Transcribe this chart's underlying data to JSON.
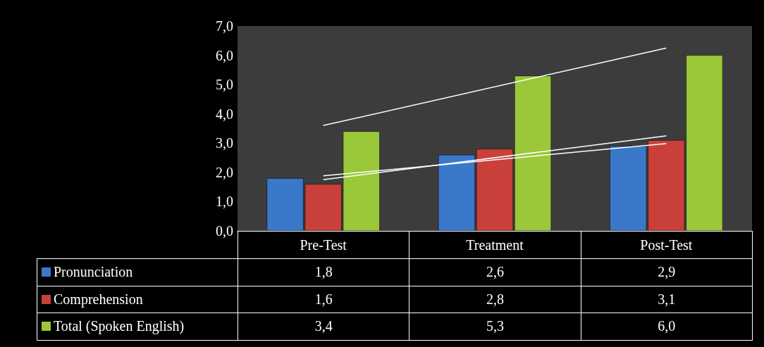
{
  "chart_data": {
    "type": "bar",
    "categories": [
      "Pre-Test",
      "Treatment",
      "Post-Test"
    ],
    "series": [
      {
        "name": "Pronunciation",
        "color": "#3a78c9",
        "values": [
          1.8,
          2.6,
          2.9
        ],
        "value_labels": [
          "1,8",
          "2,6",
          "2,9"
        ]
      },
      {
        "name": "Comprehension",
        "color": "#c9403b",
        "values": [
          1.6,
          2.8,
          3.1
        ],
        "value_labels": [
          "1,6",
          "2,8",
          "3,1"
        ]
      },
      {
        "name": "Total (Spoken English)",
        "color": "#9bc83a",
        "values": [
          3.4,
          5.3,
          6.0
        ],
        "value_labels": [
          "3,4",
          "5,3",
          "6,0"
        ]
      },
      {
        "type": "line",
        "color": "#ffffff",
        "x": [
          "Pre-Test",
          "Post-Test"
        ],
        "values": [
          1.88,
          2.98
        ]
      },
      {
        "type": "line",
        "color": "#ffffff",
        "x": [
          "Pre-Test",
          "Post-Test"
        ],
        "values": [
          1.75,
          3.25
        ]
      },
      {
        "type": "line",
        "color": "#ffffff",
        "x": [
          "Pre-Test",
          "Post-Test"
        ],
        "values": [
          3.6,
          6.25
        ]
      }
    ],
    "ylim": [
      0,
      7
    ],
    "yticks": [
      {
        "value": 0,
        "label": "0,0"
      },
      {
        "value": 1,
        "label": "1,0"
      },
      {
        "value": 2,
        "label": "2,0"
      },
      {
        "value": 3,
        "label": "3,0"
      },
      {
        "value": 4,
        "label": "4,0"
      },
      {
        "value": 5,
        "label": "5,0"
      },
      {
        "value": 6,
        "label": "6,0"
      },
      {
        "value": 7,
        "label": "7,0"
      }
    ],
    "grid": false,
    "legend": "bottom",
    "marker": "none"
  }
}
